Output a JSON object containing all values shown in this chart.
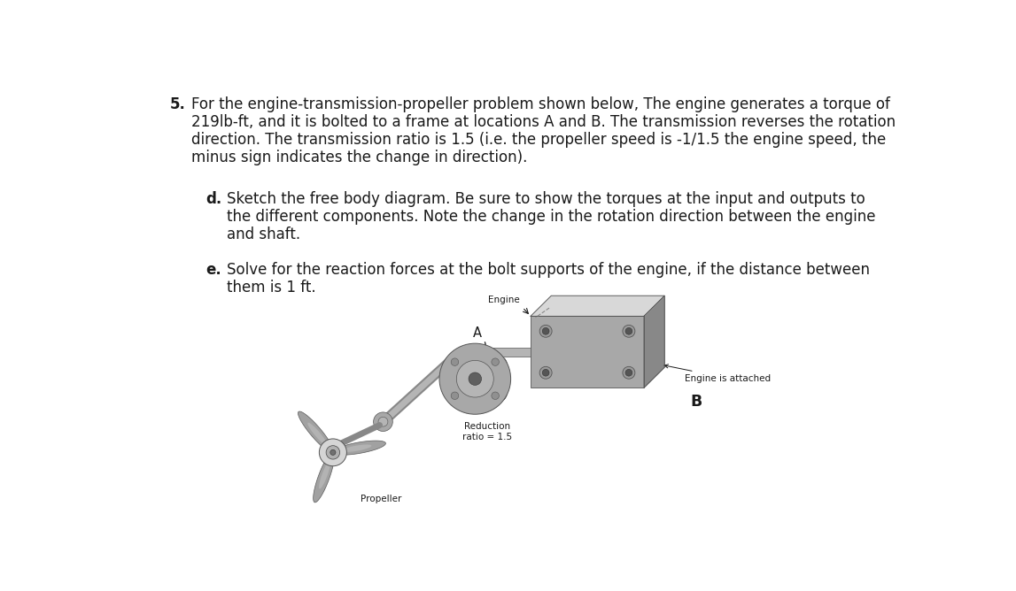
{
  "background_color": "#ffffff",
  "fig_width": 11.47,
  "fig_height": 6.68,
  "dpi": 100,
  "problem_number": "5.",
  "problem_text_line1": "For the engine-transmission-propeller problem shown below, The engine generates a torque of",
  "problem_text_line2": "219lb-ft, and it is bolted to a frame at locations A and B. The transmission reverses the rotation",
  "problem_text_line3": "direction. The transmission ratio is 1.5 (i.e. the propeller speed is -1/1.5 the engine speed, the",
  "problem_text_line4": "minus sign indicates the change in direction).",
  "part_d_label": "d.",
  "part_d_line1": "Sketch the free body diagram. Be sure to show the torques at the input and outputs to",
  "part_d_line2": "the different components. Note the change in the rotation direction between the engine",
  "part_d_line3": "and shaft.",
  "part_e_label": "e.",
  "part_e_line1": "Solve for the reaction forces at the bolt supports of the engine, if the distance between",
  "part_e_line2": "them is 1 ft.",
  "label_engine": "Engine",
  "label_A": "A",
  "label_B": "B",
  "label_reduction": "Reduction\nratio = 1.5",
  "label_propeller": "Propeller",
  "label_engine_attached": "Engine is attached",
  "text_color": "#1a1a1a",
  "font_size_main": 12.0,
  "font_size_sub": 12.0,
  "font_size_labels": 7.5,
  "font_family": "DejaVu Sans"
}
